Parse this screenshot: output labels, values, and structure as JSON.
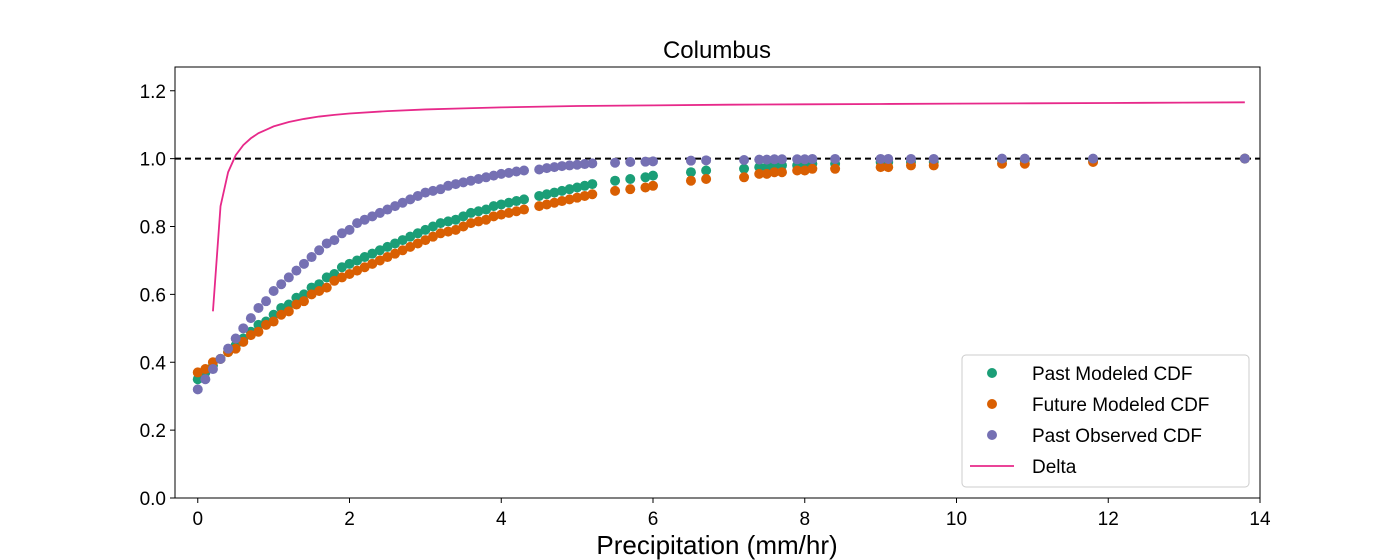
{
  "chart_data": {
    "type": "scatter",
    "title": "Columbus",
    "xlabel": "Precipitation (mm/hr)",
    "ylabel": "",
    "xlim": [
      -0.3,
      14
    ],
    "ylim": [
      0,
      1.27
    ],
    "xticks": [
      0,
      2,
      4,
      6,
      8,
      10,
      12,
      14
    ],
    "xtick_labels": [
      "0",
      "2",
      "4",
      "6",
      "8",
      "10",
      "12",
      "14"
    ],
    "yticks": [
      0.0,
      0.2,
      0.4,
      0.6,
      0.8,
      1.0,
      1.2
    ],
    "ytick_labels": [
      "0.0",
      "0.2",
      "0.4",
      "0.6",
      "0.8",
      "1.0",
      "1.2"
    ],
    "grid": false,
    "legend_position": "lower-right",
    "reference_line": {
      "y": 1.0,
      "style": "dashed",
      "color": "#000000"
    },
    "series": [
      {
        "name": "Past Modeled CDF",
        "kind": "scatter",
        "color": "#1b9e77",
        "x": [
          0.0,
          0.1,
          0.2,
          0.3,
          0.4,
          0.5,
          0.6,
          0.7,
          0.8,
          0.9,
          1.0,
          1.1,
          1.2,
          1.3,
          1.4,
          1.5,
          1.6,
          1.7,
          1.8,
          1.9,
          2.0,
          2.1,
          2.2,
          2.3,
          2.4,
          2.5,
          2.6,
          2.7,
          2.8,
          2.9,
          3.0,
          3.1,
          3.2,
          3.3,
          3.4,
          3.5,
          3.6,
          3.7,
          3.8,
          3.9,
          4.0,
          4.1,
          4.2,
          4.3,
          4.5,
          4.6,
          4.7,
          4.8,
          4.9,
          5.0,
          5.1,
          5.2,
          5.5,
          5.7,
          5.9,
          6.0,
          6.5,
          6.7,
          7.2,
          7.4,
          7.5,
          7.6,
          7.7,
          7.9,
          8.0,
          8.1,
          8.4,
          9.0,
          9.1,
          9.4,
          9.7,
          10.6,
          10.9,
          11.8,
          13.8
        ],
        "y": [
          0.35,
          0.37,
          0.39,
          0.41,
          0.43,
          0.45,
          0.47,
          0.49,
          0.51,
          0.52,
          0.54,
          0.56,
          0.57,
          0.59,
          0.6,
          0.62,
          0.63,
          0.65,
          0.66,
          0.68,
          0.69,
          0.7,
          0.71,
          0.72,
          0.73,
          0.74,
          0.75,
          0.76,
          0.77,
          0.78,
          0.79,
          0.8,
          0.81,
          0.815,
          0.82,
          0.83,
          0.84,
          0.845,
          0.85,
          0.86,
          0.865,
          0.87,
          0.875,
          0.88,
          0.89,
          0.895,
          0.9,
          0.905,
          0.91,
          0.915,
          0.92,
          0.925,
          0.935,
          0.94,
          0.945,
          0.95,
          0.96,
          0.965,
          0.97,
          0.975,
          0.975,
          0.98,
          0.98,
          0.98,
          0.985,
          0.985,
          0.985,
          0.99,
          0.99,
          0.99,
          0.99,
          0.995,
          0.995,
          0.995,
          1.0
        ]
      },
      {
        "name": "Future Modeled CDF",
        "kind": "scatter",
        "color": "#d95f02",
        "x": [
          0.0,
          0.1,
          0.2,
          0.3,
          0.4,
          0.5,
          0.6,
          0.7,
          0.8,
          0.9,
          1.0,
          1.1,
          1.2,
          1.3,
          1.4,
          1.5,
          1.6,
          1.7,
          1.8,
          1.9,
          2.0,
          2.1,
          2.2,
          2.3,
          2.4,
          2.5,
          2.6,
          2.7,
          2.8,
          2.9,
          3.0,
          3.1,
          3.2,
          3.3,
          3.4,
          3.5,
          3.6,
          3.7,
          3.8,
          3.9,
          4.0,
          4.1,
          4.2,
          4.3,
          4.5,
          4.6,
          4.7,
          4.8,
          4.9,
          5.0,
          5.1,
          5.2,
          5.5,
          5.7,
          5.9,
          6.0,
          6.5,
          6.7,
          7.2,
          7.4,
          7.5,
          7.6,
          7.7,
          7.9,
          8.0,
          8.1,
          8.4,
          9.0,
          9.1,
          9.4,
          9.7,
          10.6,
          10.9,
          11.8,
          13.8
        ],
        "y": [
          0.37,
          0.38,
          0.4,
          0.41,
          0.43,
          0.44,
          0.46,
          0.48,
          0.49,
          0.51,
          0.52,
          0.54,
          0.55,
          0.57,
          0.58,
          0.6,
          0.61,
          0.62,
          0.64,
          0.65,
          0.66,
          0.67,
          0.68,
          0.69,
          0.7,
          0.71,
          0.72,
          0.73,
          0.74,
          0.75,
          0.76,
          0.77,
          0.78,
          0.785,
          0.79,
          0.8,
          0.81,
          0.815,
          0.82,
          0.83,
          0.835,
          0.84,
          0.845,
          0.85,
          0.86,
          0.865,
          0.87,
          0.875,
          0.88,
          0.885,
          0.89,
          0.895,
          0.905,
          0.91,
          0.915,
          0.92,
          0.935,
          0.94,
          0.945,
          0.955,
          0.955,
          0.96,
          0.96,
          0.965,
          0.965,
          0.97,
          0.97,
          0.975,
          0.975,
          0.98,
          0.98,
          0.985,
          0.985,
          0.99,
          1.0
        ]
      },
      {
        "name": "Past Observed CDF",
        "kind": "scatter",
        "color": "#7570b3",
        "x": [
          0.0,
          0.1,
          0.2,
          0.3,
          0.4,
          0.5,
          0.6,
          0.7,
          0.8,
          0.9,
          1.0,
          1.1,
          1.2,
          1.3,
          1.4,
          1.5,
          1.6,
          1.7,
          1.8,
          1.9,
          2.0,
          2.1,
          2.2,
          2.3,
          2.4,
          2.5,
          2.6,
          2.7,
          2.8,
          2.9,
          3.0,
          3.1,
          3.2,
          3.3,
          3.4,
          3.5,
          3.6,
          3.7,
          3.8,
          3.9,
          4.0,
          4.1,
          4.2,
          4.3,
          4.5,
          4.6,
          4.7,
          4.8,
          4.9,
          5.0,
          5.1,
          5.2,
          5.5,
          5.7,
          5.9,
          6.0,
          6.5,
          6.7,
          7.2,
          7.4,
          7.5,
          7.6,
          7.7,
          7.9,
          8.0,
          8.1,
          8.4,
          9.0,
          9.1,
          9.4,
          9.7,
          10.6,
          10.9,
          11.8,
          13.8
        ],
        "y": [
          0.32,
          0.35,
          0.38,
          0.41,
          0.44,
          0.47,
          0.5,
          0.53,
          0.56,
          0.58,
          0.61,
          0.63,
          0.65,
          0.67,
          0.69,
          0.71,
          0.73,
          0.75,
          0.76,
          0.78,
          0.79,
          0.81,
          0.82,
          0.83,
          0.84,
          0.85,
          0.86,
          0.87,
          0.88,
          0.89,
          0.9,
          0.905,
          0.91,
          0.92,
          0.925,
          0.93,
          0.935,
          0.94,
          0.945,
          0.95,
          0.955,
          0.958,
          0.962,
          0.965,
          0.968,
          0.972,
          0.975,
          0.978,
          0.98,
          0.982,
          0.984,
          0.986,
          0.988,
          0.99,
          0.991,
          0.992,
          0.994,
          0.995,
          0.996,
          0.997,
          0.997,
          0.998,
          0.998,
          0.998,
          0.998,
          0.999,
          0.999,
          0.999,
          0.999,
          0.999,
          0.999,
          1.0,
          1.0,
          1.0,
          1.0
        ]
      },
      {
        "name": "Delta",
        "kind": "line",
        "color": "#e7298a",
        "x": [
          0.2,
          0.3,
          0.4,
          0.5,
          0.6,
          0.7,
          0.8,
          0.9,
          1.0,
          1.2,
          1.4,
          1.6,
          1.8,
          2.0,
          2.5,
          3.0,
          3.5,
          4.0,
          5.0,
          6.0,
          7.0,
          8.0,
          9.0,
          10.0,
          11.0,
          12.0,
          13.0,
          13.8
        ],
        "y": [
          0.55,
          0.86,
          0.96,
          1.01,
          1.04,
          1.06,
          1.075,
          1.085,
          1.095,
          1.108,
          1.117,
          1.124,
          1.129,
          1.133,
          1.14,
          1.145,
          1.148,
          1.151,
          1.155,
          1.157,
          1.159,
          1.16,
          1.161,
          1.162,
          1.163,
          1.164,
          1.165,
          1.166
        ]
      }
    ]
  }
}
